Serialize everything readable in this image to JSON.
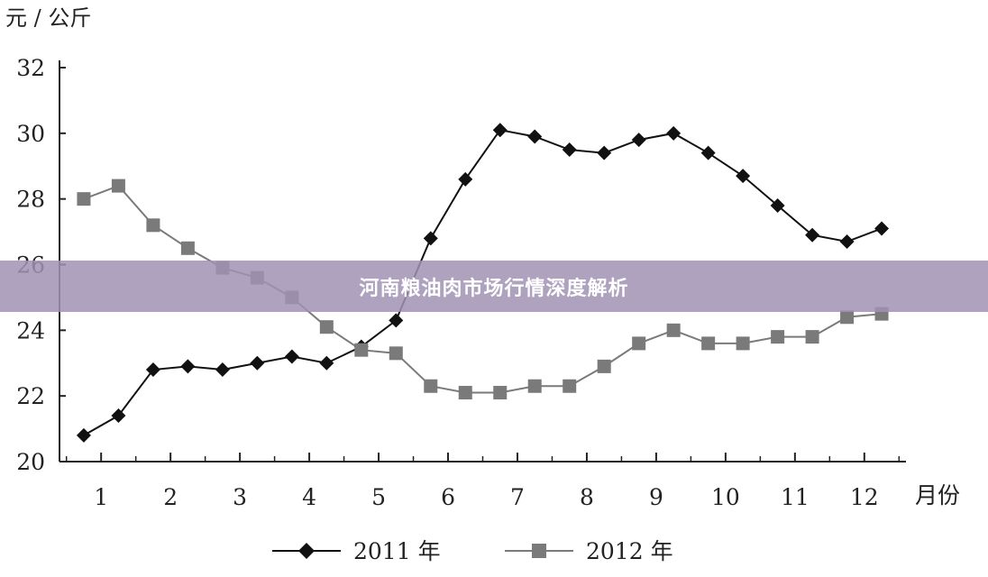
{
  "banner": {
    "title": "河南粮油肉市场行情深度解析"
  },
  "chart_data": {
    "type": "line",
    "y_unit_label": "元 / 公斤",
    "x_unit_label": "月份",
    "ylim": [
      20,
      32
    ],
    "y_ticks": [
      "20",
      "22",
      "24",
      "26",
      "28",
      "30",
      "32"
    ],
    "x_tick_labels": [
      "1",
      "2",
      "3",
      "4",
      "5",
      "6",
      "7",
      "8",
      "9",
      "10",
      "11",
      "12"
    ],
    "grid": false,
    "legend_position": "bottom",
    "series": [
      {
        "name": "2011 年",
        "color": "#111111",
        "marker": "diamond",
        "x": [
          0.75,
          1.25,
          1.75,
          2.25,
          2.75,
          3.25,
          3.75,
          4.25,
          4.75,
          5.25,
          5.75,
          6.25,
          6.75,
          7.25,
          7.75,
          8.25,
          8.75,
          9.25,
          9.75,
          10.25,
          10.75,
          11.25,
          11.75,
          12.25
        ],
        "values": [
          20.8,
          21.4,
          22.8,
          22.9,
          22.8,
          23.0,
          23.2,
          23.0,
          23.5,
          24.3,
          26.8,
          28.6,
          30.1,
          29.9,
          29.5,
          29.4,
          29.8,
          30.0,
          29.4,
          28.7,
          27.8,
          26.9,
          26.7,
          27.1
        ]
      },
      {
        "name": "2012 年",
        "color": "#7a7a7a",
        "marker": "square",
        "x": [
          0.75,
          1.25,
          1.75,
          2.25,
          2.75,
          3.25,
          3.75,
          4.25,
          4.75,
          5.25,
          5.75,
          6.25,
          6.75,
          7.25,
          7.75,
          8.25,
          8.75,
          9.25,
          9.75,
          10.25,
          10.75,
          11.25,
          11.75,
          12.25
        ],
        "values": [
          28.0,
          28.4,
          27.2,
          26.5,
          25.9,
          25.6,
          25.0,
          24.1,
          23.4,
          23.3,
          22.3,
          22.1,
          22.1,
          22.3,
          22.3,
          22.9,
          23.6,
          24.0,
          23.6,
          23.6,
          23.8,
          23.8,
          24.4,
          24.5
        ]
      }
    ]
  }
}
